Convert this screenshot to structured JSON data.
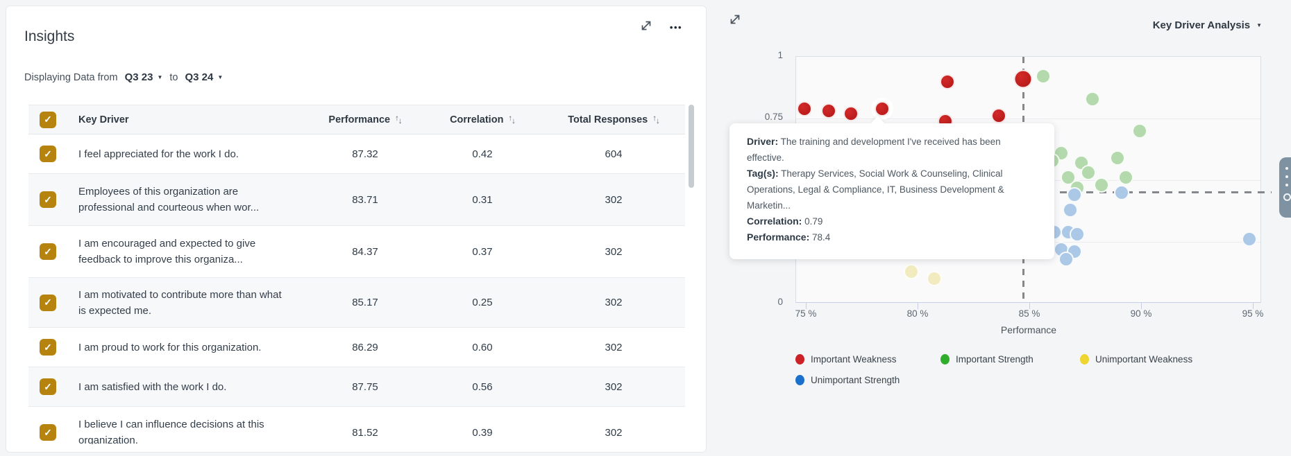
{
  "icons": {
    "caret_down": "▼",
    "more": "•••",
    "check": "✓",
    "sort_up": "↑",
    "sort_down": "↓"
  },
  "insights_card": {
    "title": "Insights",
    "filter": {
      "prefix": "Displaying Data from",
      "from_value": "Q3 23",
      "to_label": "to",
      "to_value": "Q3 24"
    },
    "table": {
      "headers": {
        "key_driver": "Key Driver",
        "performance": "Performance",
        "correlation": "Correlation",
        "total_responses": "Total Responses"
      },
      "rows": [
        {
          "driver": "I feel appreciated for the work I do.",
          "performance": "87.32",
          "correlation": "0.42",
          "total_responses": "604",
          "checked": true
        },
        {
          "driver": "Employees of this organization are professional and courteous when wor...",
          "performance": "83.71",
          "correlation": "0.31",
          "total_responses": "302",
          "checked": true
        },
        {
          "driver": "I am encouraged and expected to give feedback to improve this organiza...",
          "performance": "84.37",
          "correlation": "0.37",
          "total_responses": "302",
          "checked": true
        },
        {
          "driver": "I am motivated to contribute more than what is expected me.",
          "performance": "85.17",
          "correlation": "0.25",
          "total_responses": "302",
          "checked": true
        },
        {
          "driver": "I am proud to work for this organization.",
          "performance": "86.29",
          "correlation": "0.60",
          "total_responses": "302",
          "checked": true
        },
        {
          "driver": "I am satisfied with the work I do.",
          "performance": "87.75",
          "correlation": "0.56",
          "total_responses": "302",
          "checked": true
        },
        {
          "driver": "I believe I can influence decisions at this organization.",
          "performance": "81.52",
          "correlation": "0.39",
          "total_responses": "302",
          "checked": true
        }
      ]
    }
  },
  "chart_panel": {
    "selector_label": "Key Driver Analysis",
    "tooltip": {
      "rows": [
        {
          "label": "Driver:",
          "text": "The training and development I've received has been effective."
        },
        {
          "label": "Tag(s):",
          "text": "Therapy Services, Social Work & Counseling, Clinical Operations, Legal & Compliance, IT, Business Development & Marketin..."
        },
        {
          "label": "Correlation:",
          "text": "0.79"
        },
        {
          "label": "Performance:",
          "text": "78.4"
        }
      ]
    },
    "legend": [
      {
        "label": "Important Weakness",
        "color": "#cb2127"
      },
      {
        "label": "Important Strength",
        "color": "#2fae2b"
      },
      {
        "label": "Unimportant Weakness",
        "color": "#eed52f"
      },
      {
        "label": "Unimportant Strength",
        "color": "#1b70cc"
      }
    ]
  },
  "chart_data": {
    "type": "scatter",
    "xlabel": "Performance",
    "x_tick_labels": [
      "75 %",
      "80 %",
      "85 %",
      "90 %",
      "95 %"
    ],
    "x_tick_values": [
      75,
      80,
      85,
      90,
      95
    ],
    "y_tick_labels": [
      "0",
      "0.75",
      "1"
    ],
    "y_tick_values": [
      0,
      0.75,
      1
    ],
    "y_gridlines": [
      0.25,
      0.5,
      0.75
    ],
    "x_range": [
      74.5,
      95.4
    ],
    "y_range": [
      0,
      1
    ],
    "grid": true,
    "legend_position": "bottom",
    "threshold_x": 84.7,
    "threshold_y": 0.45,
    "series": [
      {
        "name": "Important Weakness",
        "color": "#c2262b",
        "points": [
          {
            "x": 74.9,
            "y": 0.79
          },
          {
            "x": 76.0,
            "y": 0.78
          },
          {
            "x": 77.0,
            "y": 0.77
          },
          {
            "x": 78.4,
            "y": 0.79,
            "hovered": true
          },
          {
            "x": 81.3,
            "y": 0.9
          },
          {
            "x": 81.2,
            "y": 0.74
          },
          {
            "x": 83.6,
            "y": 0.76
          },
          {
            "x": 84.7,
            "y": 0.91,
            "r": 13.5
          }
        ]
      },
      {
        "name": "Important Strength",
        "color": "#b3d9ac",
        "points": [
          {
            "x": 85.6,
            "y": 0.92
          },
          {
            "x": 87.8,
            "y": 0.83
          },
          {
            "x": 89.9,
            "y": 0.7
          },
          {
            "x": 86.4,
            "y": 0.61
          },
          {
            "x": 86.0,
            "y": 0.58
          },
          {
            "x": 88.9,
            "y": 0.59
          },
          {
            "x": 87.3,
            "y": 0.57
          },
          {
            "x": 85.8,
            "y": 0.52
          },
          {
            "x": 87.6,
            "y": 0.53
          },
          {
            "x": 86.7,
            "y": 0.51
          },
          {
            "x": 89.3,
            "y": 0.51
          },
          {
            "x": 88.2,
            "y": 0.48
          },
          {
            "x": 87.1,
            "y": 0.47
          },
          {
            "x": 85.7,
            "y": 0.47
          }
        ]
      },
      {
        "name": "Unimportant Strength",
        "color": "#abc8e6",
        "points": [
          {
            "x": 89.1,
            "y": 0.45
          },
          {
            "x": 87.0,
            "y": 0.44
          },
          {
            "x": 86.8,
            "y": 0.38
          },
          {
            "x": 86.1,
            "y": 0.29
          },
          {
            "x": 86.7,
            "y": 0.29
          },
          {
            "x": 87.1,
            "y": 0.28
          },
          {
            "x": 86.4,
            "y": 0.22
          },
          {
            "x": 87.0,
            "y": 0.21
          },
          {
            "x": 86.6,
            "y": 0.18
          },
          {
            "x": 94.8,
            "y": 0.26
          }
        ]
      },
      {
        "name": "Unimportant Weakness",
        "color": "#f2ebc0",
        "points": [
          {
            "x": 79.7,
            "y": 0.13
          },
          {
            "x": 80.7,
            "y": 0.1
          }
        ]
      }
    ],
    "hovered_point": {
      "series": "Important Weakness",
      "x": 78.4,
      "y": 0.79
    }
  }
}
